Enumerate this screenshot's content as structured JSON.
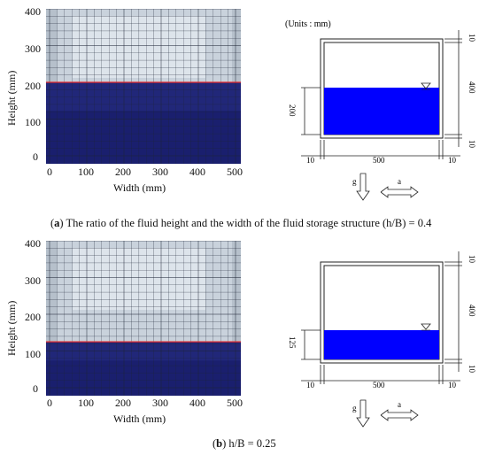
{
  "panels": [
    {
      "id": "a",
      "photo": {
        "ylabel": "Height (mm)",
        "xlabel": "Width (mm)",
        "yticks": [
          "400",
          "300",
          "200",
          "100",
          "0"
        ],
        "xticks": [
          "0",
          "100",
          "200",
          "300",
          "400",
          "500"
        ],
        "fluid_height_mm": 200,
        "fluid_color": "#1a1f6e"
      },
      "schematic": {
        "units": "(Units : mm)",
        "dim_top": "10",
        "dim_height": "400",
        "dim_bottom": "10",
        "dim_fluid": "200",
        "dim_left": "10",
        "dim_width": "500",
        "dim_right": "10",
        "g_label": "g",
        "a_label": "a",
        "fluid_color": "#0000ff"
      },
      "caption": {
        "tag": "a",
        "text": "The ratio of the fluid height and the width of the fluid storage structure (h/B) = 0.4"
      }
    },
    {
      "id": "b",
      "photo": {
        "ylabel": "Height (mm)",
        "xlabel": "Width (mm)",
        "yticks": [
          "400",
          "300",
          "200",
          "100",
          "0"
        ],
        "xticks": [
          "0",
          "100",
          "200",
          "300",
          "400",
          "500"
        ],
        "fluid_height_mm": 125,
        "fluid_color": "#1a1f6e"
      },
      "schematic": {
        "units": "",
        "dim_top": "10",
        "dim_height": "400",
        "dim_bottom": "10",
        "dim_fluid": "125",
        "dim_left": "10",
        "dim_width": "500",
        "dim_right": "10",
        "g_label": "g",
        "a_label": "a",
        "fluid_color": "#0000ff"
      },
      "caption": {
        "tag": "b",
        "text": "h/B = 0.25"
      }
    }
  ]
}
